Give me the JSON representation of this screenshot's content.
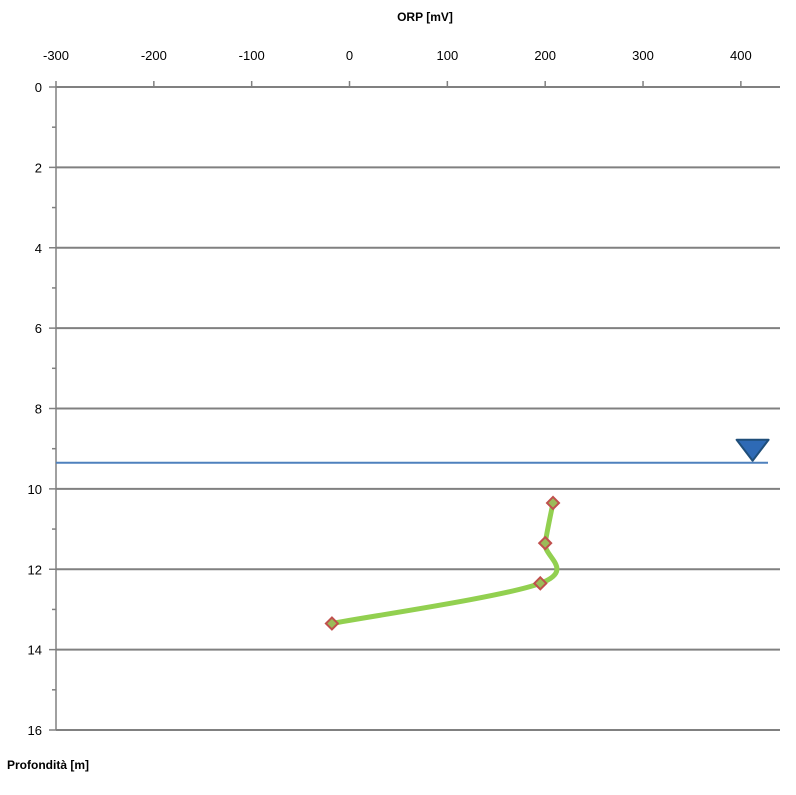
{
  "chart_data": {
    "type": "line",
    "xlabel": "ORP [mV]",
    "ylabel": "Profondità [m]",
    "xlim": [
      -300,
      440
    ],
    "ylim": [
      0,
      16
    ],
    "x_ticks": [
      -300,
      -200,
      -100,
      0,
      100,
      200,
      300,
      400
    ],
    "y_ticks": [
      0,
      2,
      4,
      6,
      8,
      10,
      12,
      14,
      16
    ],
    "x_axis_position": "top",
    "y_axis_inverted": true,
    "grid": "horizontal",
    "series": [
      {
        "points": [
          {
            "x": 208,
            "y": 10.35
          },
          {
            "x": 200,
            "y": 11.35
          },
          {
            "x": 195,
            "y": 12.35
          },
          {
            "x": -18,
            "y": 13.35
          }
        ],
        "line_color": "#92d050",
        "marker": "diamond",
        "marker_edge_color": "#c0504d",
        "marker_fill_color": "#9bbb59"
      }
    ],
    "water_level": {
      "depth": 9.35,
      "x_symbol": 412,
      "line_color": "#4f81bd",
      "symbol_color": "#2e6ab5"
    }
  }
}
